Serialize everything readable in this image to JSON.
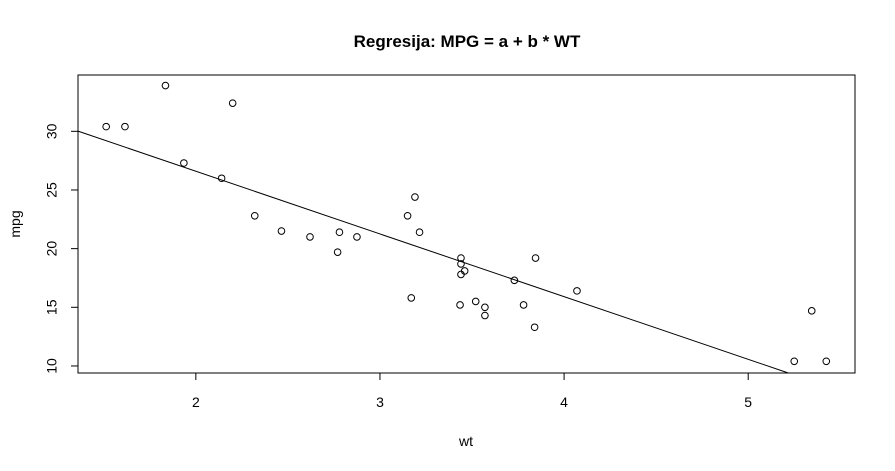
{
  "chart_data": {
    "type": "scatter",
    "title": "Regresija: MPG = a + b * WT",
    "xlabel": "wt",
    "ylabel": "mpg",
    "xlim": [
      1.36,
      5.58
    ],
    "ylim": [
      9.4,
      34.8
    ],
    "x_ticks": [
      2,
      3,
      4,
      5
    ],
    "y_ticks": [
      10,
      15,
      20,
      25,
      30
    ],
    "grid": false,
    "series": [
      {
        "x": [
          2.62,
          2.875,
          2.32,
          3.215,
          3.44,
          3.46,
          3.57,
          3.19,
          3.15,
          3.44,
          3.44,
          4.07,
          3.73,
          3.78,
          5.25,
          5.424,
          5.345,
          2.2,
          1.615,
          1.835,
          2.465,
          3.52,
          3.435,
          3.84,
          3.845,
          1.935,
          2.14,
          1.513,
          3.17,
          2.77,
          3.57,
          2.78
        ],
        "y": [
          21.0,
          21.0,
          22.8,
          21.4,
          18.7,
          18.1,
          14.3,
          24.4,
          22.8,
          19.2,
          17.8,
          16.4,
          17.3,
          15.2,
          10.4,
          10.4,
          14.7,
          32.4,
          30.4,
          33.9,
          21.5,
          15.5,
          15.2,
          13.3,
          19.2,
          27.3,
          26.0,
          30.4,
          15.8,
          19.7,
          15.0,
          21.4
        ]
      }
    ],
    "regression_line": {
      "intercept": 37.285,
      "slope": -5.344
    }
  }
}
